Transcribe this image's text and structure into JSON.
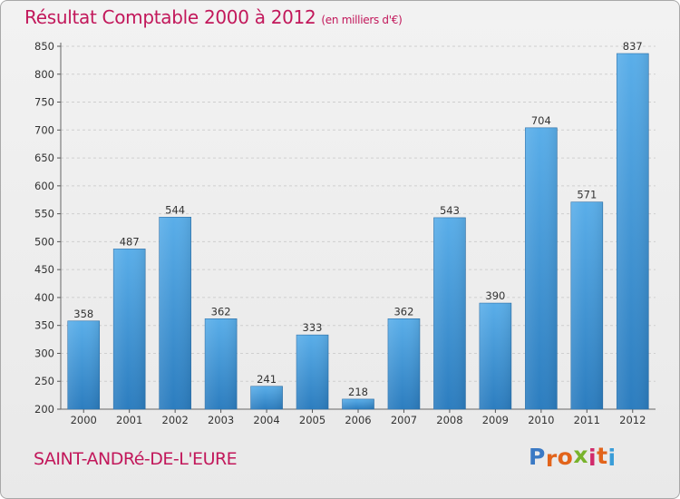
{
  "header": {
    "title": "Résultat Comptable 2000 à 2012",
    "subtitle": "(en milliers d'€)"
  },
  "footer": {
    "town": "SAINT-ANDRé-DE-L'EURE",
    "brand_letters": [
      "P",
      "r",
      "o",
      "x",
      "i",
      "t",
      "i"
    ],
    "brand_colors": [
      "#3a79c4",
      "#e2641b",
      "#e2641b",
      "#78b32c",
      "#d12a6b",
      "#e2641b",
      "#3a9dd8"
    ]
  },
  "chart_data": {
    "type": "bar",
    "categories": [
      "2000",
      "2001",
      "2002",
      "2003",
      "2004",
      "2005",
      "2006",
      "2007",
      "2008",
      "2009",
      "2010",
      "2011",
      "2012"
    ],
    "values": [
      358,
      487,
      544,
      362,
      241,
      333,
      218,
      362,
      543,
      390,
      704,
      571,
      837
    ],
    "ylim": [
      200,
      850
    ],
    "yticks": [
      200,
      250,
      300,
      350,
      400,
      450,
      500,
      550,
      600,
      650,
      700,
      750,
      800,
      850
    ],
    "grid": true,
    "bar_color": "#3d8fd1"
  }
}
